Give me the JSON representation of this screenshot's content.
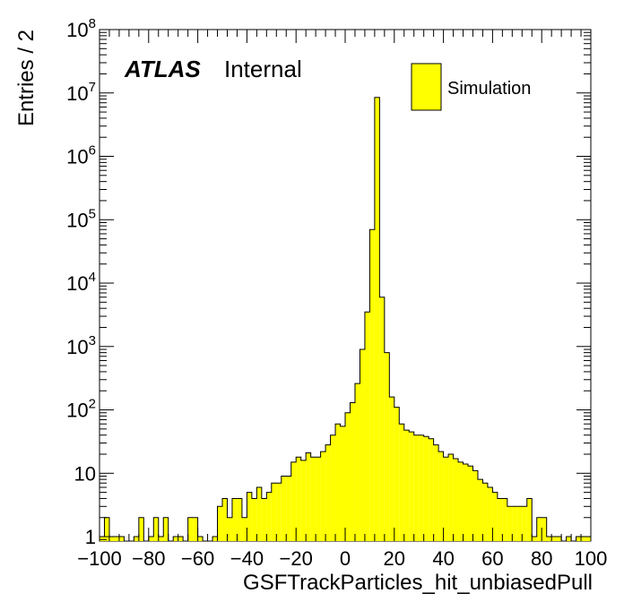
{
  "chart_data": {
    "type": "bar",
    "xlabel": "GSFTrackParticles_hit_unbiasedPull",
    "ylabel": "Entries / 2",
    "xlim": [
      -100,
      100
    ],
    "ylim": [
      1,
      100000000
    ],
    "log_y": true,
    "bin_width": 2,
    "grid": false,
    "x_ticks": [
      "−100",
      "−80",
      "−60",
      "−40",
      "−20",
      "0",
      "20",
      "40",
      "60",
      "80",
      "100"
    ],
    "y_ticks": [
      {
        "text": "1"
      },
      {
        "text": "10"
      },
      {
        "base": "10",
        "exp": "2"
      },
      {
        "base": "10",
        "exp": "3"
      },
      {
        "base": "10",
        "exp": "4"
      },
      {
        "base": "10",
        "exp": "5"
      },
      {
        "base": "10",
        "exp": "6"
      },
      {
        "base": "10",
        "exp": "7"
      },
      {
        "base": "10",
        "exp": "8"
      }
    ],
    "atlas_label": "ATLAS",
    "status_label": "Internal",
    "legend_position": "top-right",
    "series": [
      {
        "name": "Simulation",
        "color": "#ffff00",
        "edge_color": "#000000",
        "bin_low_edges": [
          -100,
          -98,
          -96,
          -94,
          -92,
          -90,
          -88,
          -86,
          -84,
          -82,
          -80,
          -78,
          -76,
          -74,
          -72,
          -70,
          -68,
          -66,
          -64,
          -62,
          -60,
          -58,
          -56,
          -54,
          -52,
          -50,
          -48,
          -46,
          -44,
          -42,
          -40,
          -38,
          -36,
          -34,
          -32,
          -30,
          -28,
          -26,
          -24,
          -22,
          -20,
          -18,
          -16,
          -14,
          -12,
          -10,
          -8,
          -6,
          -4,
          -2,
          0,
          2,
          4,
          6,
          8,
          10,
          12,
          14,
          16,
          18,
          20,
          22,
          24,
          26,
          28,
          30,
          32,
          34,
          36,
          38,
          40,
          42,
          44,
          46,
          48,
          50,
          52,
          54,
          56,
          58,
          60,
          62,
          64,
          66,
          68,
          70,
          72,
          74,
          76,
          78,
          80,
          82,
          84,
          86,
          88,
          90,
          92,
          94,
          96,
          98
        ],
        "values": [
          1,
          2,
          1,
          1,
          1,
          0,
          0,
          1,
          2,
          0,
          1,
          2,
          1,
          2,
          0,
          1,
          1,
          0,
          2,
          2,
          1,
          0,
          0,
          1,
          3,
          4,
          2,
          4,
          4,
          2,
          5,
          4,
          6,
          4,
          5,
          7,
          7,
          9,
          9,
          15,
          18,
          16,
          21,
          18,
          18,
          22,
          28,
          40,
          60,
          55,
          90,
          130,
          260,
          900,
          3500,
          70000,
          8500000,
          6000,
          800,
          160,
          110,
          60,
          48,
          45,
          40,
          40,
          38,
          35,
          28,
          22,
          18,
          20,
          17,
          15,
          14,
          13,
          11,
          8,
          7,
          6,
          5,
          4,
          4,
          3,
          3,
          3,
          3,
          4,
          1,
          2,
          2,
          1,
          1,
          1,
          0,
          1,
          0,
          1,
          1,
          1
        ]
      }
    ]
  }
}
